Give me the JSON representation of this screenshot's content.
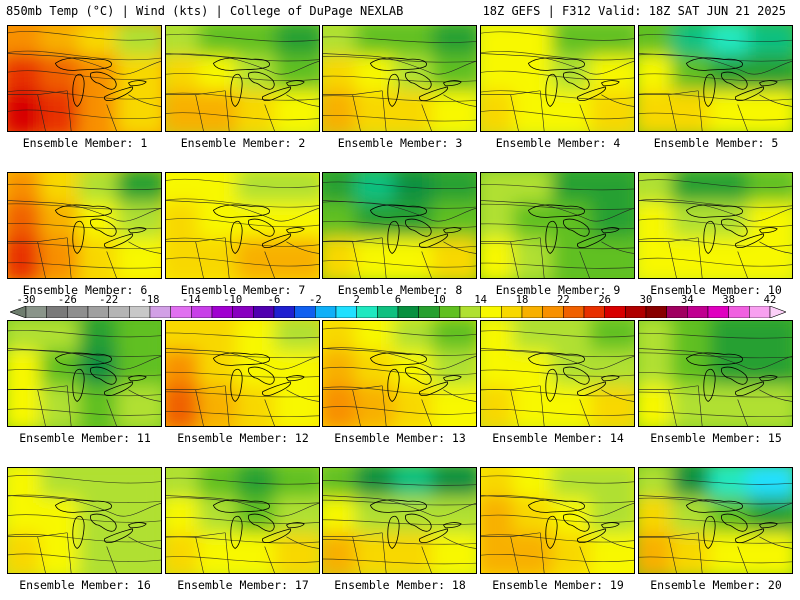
{
  "header": {
    "left_title": "850mb Temp (°C) | Wind (kts) | College of DuPage NEXLAB",
    "right_title": "18Z GEFS | F312 Valid: 18Z SAT JUN 21 2025"
  },
  "colorbar": {
    "tick_labels": [
      "-30",
      "-26",
      "-22",
      "-18",
      "-14",
      "-10",
      "-6",
      "-2",
      "2",
      "6",
      "10",
      "14",
      "18",
      "22",
      "26",
      "30",
      "34",
      "38",
      "42"
    ],
    "bins": [
      {
        "from": -32,
        "color": "#6e7d6e"
      },
      {
        "from": -30,
        "color": "#8a958a"
      },
      {
        "from": -28,
        "color": "#7a7a7a"
      },
      {
        "from": -26,
        "color": "#8e8e8e"
      },
      {
        "from": -24,
        "color": "#a0a0a0"
      },
      {
        "from": -22,
        "color": "#b4b4b4"
      },
      {
        "from": -20,
        "color": "#c8c8c8"
      },
      {
        "from": -18,
        "color": "#d2a0e6"
      },
      {
        "from": -16,
        "color": "#e070f0"
      },
      {
        "from": -14,
        "color": "#c840e8"
      },
      {
        "from": -12,
        "color": "#a000d0"
      },
      {
        "from": -10,
        "color": "#8800c0"
      },
      {
        "from": -8,
        "color": "#5000b0"
      },
      {
        "from": -6,
        "color": "#2020d0"
      },
      {
        "from": -4,
        "color": "#1060f0"
      },
      {
        "from": -2,
        "color": "#10b0f8"
      },
      {
        "from": 0,
        "color": "#20e0ff"
      },
      {
        "from": 2,
        "color": "#20e8c0"
      },
      {
        "from": 4,
        "color": "#10c080"
      },
      {
        "from": 6,
        "color": "#089040"
      },
      {
        "from": 8,
        "color": "#28a030"
      },
      {
        "from": 10,
        "color": "#60c020"
      },
      {
        "from": 12,
        "color": "#b0e030"
      },
      {
        "from": 14,
        "color": "#f8f800"
      },
      {
        "from": 16,
        "color": "#f8d800"
      },
      {
        "from": 18,
        "color": "#f8b000"
      },
      {
        "from": 20,
        "color": "#f89000"
      },
      {
        "from": 22,
        "color": "#f06000"
      },
      {
        "from": 24,
        "color": "#e83000"
      },
      {
        "from": 26,
        "color": "#d80000"
      },
      {
        "from": 28,
        "color": "#b00000"
      },
      {
        "from": 30,
        "color": "#880000"
      },
      {
        "from": 32,
        "color": "#a00060"
      },
      {
        "from": 34,
        "color": "#c00090"
      },
      {
        "from": 36,
        "color": "#e000c0"
      },
      {
        "from": 38,
        "color": "#f060e0"
      },
      {
        "from": 40,
        "color": "#f8a0f0"
      },
      {
        "from": 42,
        "color": "#fcd0f8"
      }
    ]
  },
  "panels": [
    {
      "label": "Ensemble Member: 1",
      "temps": [
        20,
        19,
        16,
        12,
        24,
        23,
        20,
        16,
        27,
        25,
        21,
        17
      ]
    },
    {
      "label": "Ensemble Member: 2",
      "temps": [
        13,
        11,
        10,
        9,
        17,
        15,
        13,
        11,
        19,
        18,
        16,
        14
      ]
    },
    {
      "label": "Ensemble Member: 3",
      "temps": [
        12,
        11,
        10,
        9,
        16,
        14,
        12,
        11,
        18,
        17,
        16,
        14
      ]
    },
    {
      "label": "Ensemble Member: 4",
      "temps": [
        14,
        14,
        11,
        10,
        15,
        14,
        13,
        14,
        16,
        15,
        15,
        16
      ]
    },
    {
      "label": "Ensemble Member: 5",
      "temps": [
        10,
        4,
        3,
        5,
        14,
        10,
        8,
        9,
        17,
        16,
        15,
        14
      ]
    },
    {
      "label": "Ensemble Member: 6",
      "temps": [
        20,
        16,
        13,
        9,
        22,
        19,
        15,
        13,
        24,
        21,
        17,
        15
      ]
    },
    {
      "label": "Ensemble Member: 7",
      "temps": [
        15,
        14,
        13,
        12,
        16,
        15,
        14,
        14,
        17,
        17,
        18,
        19
      ]
    },
    {
      "label": "Ensemble Member: 8",
      "temps": [
        8,
        4,
        6,
        8,
        11,
        8,
        9,
        11,
        16,
        14,
        15,
        17
      ]
    },
    {
      "label": "Ensemble Member: 9",
      "temps": [
        13,
        12,
        9,
        8,
        13,
        11,
        10,
        9,
        14,
        12,
        10,
        11
      ]
    },
    {
      "label": "Ensemble Member: 10",
      "temps": [
        12,
        8,
        9,
        11,
        14,
        12,
        13,
        14,
        15,
        14,
        14,
        15
      ]
    },
    {
      "label": "Ensemble Member: 11",
      "temps": [
        13,
        12,
        8,
        10,
        14,
        11,
        7,
        10,
        15,
        13,
        10,
        12
      ]
    },
    {
      "label": "Ensemble Member: 12",
      "temps": [
        17,
        16,
        14,
        12,
        21,
        17,
        15,
        14,
        22,
        19,
        17,
        15
      ]
    },
    {
      "label": "Ensemble Member: 13",
      "temps": [
        16,
        14,
        12,
        10,
        18,
        16,
        14,
        13,
        20,
        18,
        16,
        15
      ]
    },
    {
      "label": "Ensemble Member: 14",
      "temps": [
        14,
        13,
        12,
        11,
        15,
        14,
        13,
        13,
        16,
        15,
        15,
        16
      ]
    },
    {
      "label": "Ensemble Member: 15",
      "temps": [
        12,
        10,
        9,
        8,
        13,
        11,
        9,
        9,
        14,
        13,
        12,
        12
      ]
    },
    {
      "label": "Ensemble Member: 16",
      "temps": [
        14,
        13,
        12,
        12,
        15,
        14,
        13,
        13,
        16,
        14,
        13,
        13
      ]
    },
    {
      "label": "Ensemble Member: 17",
      "temps": [
        13,
        11,
        9,
        11,
        15,
        12,
        11,
        13,
        17,
        15,
        15,
        16
      ]
    },
    {
      "label": "Ensemble Member: 18",
      "temps": [
        10,
        6,
        5,
        7,
        15,
        13,
        12,
        12,
        18,
        17,
        16,
        15
      ]
    },
    {
      "label": "Ensemble Member: 19",
      "temps": [
        16,
        15,
        13,
        12,
        18,
        16,
        14,
        13,
        19,
        18,
        16,
        15
      ]
    },
    {
      "label": "Ensemble Member: 20",
      "temps": [
        12,
        7,
        3,
        1,
        16,
        13,
        10,
        8,
        18,
        17,
        15,
        14
      ]
    }
  ]
}
